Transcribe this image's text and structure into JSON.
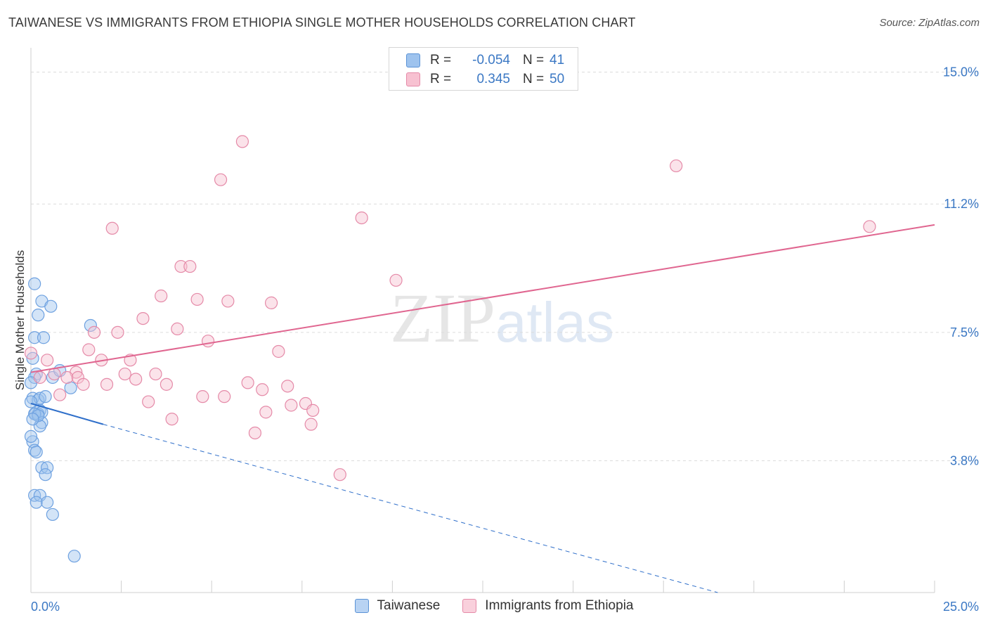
{
  "header": {
    "title": "TAIWANESE VS IMMIGRANTS FROM ETHIOPIA SINGLE MOTHER HOUSEHOLDS CORRELATION CHART",
    "source": "Source: ZipAtlas.com"
  },
  "watermark": {
    "zip": "ZIP",
    "atlas": "atlas"
  },
  "legend": {
    "rows": [
      {
        "r_label": "R =",
        "r_value": "-0.054",
        "n_label": "N =",
        "n_value": "41",
        "color": "#9ec3ee",
        "border": "#5b93d6"
      },
      {
        "r_label": "R =",
        "r_value": "0.345",
        "n_label": "N =",
        "n_value": "50",
        "color": "#f7c1d1",
        "border": "#e58aa8"
      }
    ],
    "bottom": [
      {
        "label": "Taiwanese",
        "color": "#b8d3f3",
        "border": "#5b93d6"
      },
      {
        "label": "Immigrants from Ethiopia",
        "color": "#f9d0dc",
        "border": "#e58aa8"
      }
    ]
  },
  "chart_data": {
    "type": "scatter",
    "title": "TAIWANESE VS IMMIGRANTS FROM ETHIOPIA SINGLE MOTHER HOUSEHOLDS CORRELATION CHART",
    "xlabel": "",
    "ylabel": "Single Mother Households",
    "xlim": [
      0,
      25
    ],
    "ylim": [
      0,
      15.5
    ],
    "x_tick_labels": [
      "0.0%",
      "25.0%"
    ],
    "y_ticks": [
      3.8,
      7.5,
      11.2,
      15.0
    ],
    "y_tick_labels": [
      "3.8%",
      "7.5%",
      "11.2%",
      "15.0%"
    ],
    "grid": true,
    "series": [
      {
        "name": "Taiwanese",
        "color": "#6ea1e0",
        "fill": "rgba(158,195,238,0.45)",
        "trend": {
          "x0": 0,
          "y0": 5.45,
          "x1": 2.0,
          "y1": 4.85,
          "dash_to_x": 19.0,
          "dash_to_y": 0.0
        },
        "points": [
          [
            0.1,
            8.9
          ],
          [
            0.3,
            8.4
          ],
          [
            0.55,
            8.25
          ],
          [
            0.2,
            8.0
          ],
          [
            0.1,
            7.35
          ],
          [
            0.35,
            7.35
          ],
          [
            0.05,
            6.75
          ],
          [
            0.15,
            6.3
          ],
          [
            0.1,
            6.2
          ],
          [
            0.6,
            6.2
          ],
          [
            0.8,
            6.4
          ],
          [
            0.0,
            6.05
          ],
          [
            0.05,
            5.6
          ],
          [
            0.2,
            5.55
          ],
          [
            0.25,
            5.6
          ],
          [
            0.25,
            5.25
          ],
          [
            0.12,
            5.15
          ],
          [
            0.2,
            5.15
          ],
          [
            0.3,
            5.2
          ],
          [
            0.4,
            5.65
          ],
          [
            1.1,
            5.9
          ],
          [
            0.3,
            4.9
          ],
          [
            0.25,
            4.8
          ],
          [
            0.05,
            4.35
          ],
          [
            0.1,
            4.1
          ],
          [
            0.15,
            4.05
          ],
          [
            0.3,
            3.6
          ],
          [
            0.45,
            3.6
          ],
          [
            0.4,
            3.4
          ],
          [
            0.1,
            2.8
          ],
          [
            0.25,
            2.8
          ],
          [
            0.15,
            2.6
          ],
          [
            0.45,
            2.6
          ],
          [
            0.6,
            2.25
          ],
          [
            1.2,
            1.05
          ],
          [
            1.65,
            7.7
          ],
          [
            0.0,
            5.5
          ],
          [
            0.1,
            5.15
          ],
          [
            0.2,
            5.1
          ],
          [
            0.05,
            5.0
          ],
          [
            0.0,
            4.5
          ]
        ]
      },
      {
        "name": "Immigrants from Ethiopia",
        "color": "#e58aa8",
        "fill": "rgba(247,193,209,0.45)",
        "trend": {
          "x0": 0,
          "y0": 6.35,
          "x1": 25.0,
          "y1": 10.6
        },
        "points": [
          [
            5.85,
            13.0
          ],
          [
            5.25,
            11.9
          ],
          [
            17.85,
            12.3
          ],
          [
            9.15,
            10.8
          ],
          [
            2.25,
            10.5
          ],
          [
            23.2,
            10.55
          ],
          [
            4.15,
            9.4
          ],
          [
            4.4,
            9.4
          ],
          [
            10.1,
            9.0
          ],
          [
            3.6,
            8.55
          ],
          [
            4.6,
            8.45
          ],
          [
            5.45,
            8.4
          ],
          [
            6.65,
            8.35
          ],
          [
            3.1,
            7.9
          ],
          [
            4.05,
            7.6
          ],
          [
            1.75,
            7.5
          ],
          [
            2.4,
            7.5
          ],
          [
            4.9,
            7.25
          ],
          [
            1.6,
            7.0
          ],
          [
            6.85,
            6.95
          ],
          [
            0.45,
            6.7
          ],
          [
            1.95,
            6.7
          ],
          [
            2.75,
            6.7
          ],
          [
            0.65,
            6.3
          ],
          [
            1.25,
            6.35
          ],
          [
            1.0,
            6.2
          ],
          [
            1.3,
            6.2
          ],
          [
            2.6,
            6.3
          ],
          [
            3.45,
            6.3
          ],
          [
            0.25,
            6.2
          ],
          [
            2.9,
            6.15
          ],
          [
            1.45,
            6.0
          ],
          [
            2.1,
            6.0
          ],
          [
            3.75,
            6.0
          ],
          [
            6.0,
            6.05
          ],
          [
            7.1,
            5.95
          ],
          [
            6.4,
            5.85
          ],
          [
            0.8,
            5.7
          ],
          [
            4.75,
            5.65
          ],
          [
            5.35,
            5.65
          ],
          [
            3.25,
            5.5
          ],
          [
            7.2,
            5.4
          ],
          [
            7.6,
            5.45
          ],
          [
            7.8,
            5.25
          ],
          [
            6.5,
            5.2
          ],
          [
            3.9,
            5.0
          ],
          [
            7.75,
            4.85
          ],
          [
            6.2,
            4.6
          ],
          [
            8.55,
            3.4
          ],
          [
            0.0,
            6.9
          ]
        ]
      }
    ]
  }
}
